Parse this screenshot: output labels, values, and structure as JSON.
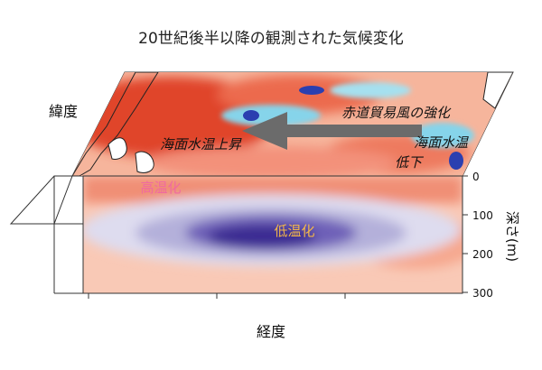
{
  "title": "20世紀後半以降の観測された気候変化",
  "labels": {
    "latitude": "緯度",
    "longitude": "経度",
    "depth_axis": "深さ(m)",
    "trade_wind": "赤道貿易風の強化",
    "sst_rise": "海面水温上昇",
    "sst_fall_line1": "海面水温",
    "sst_fall_line2": "低下",
    "warming": "高温化",
    "cooling": "低温化"
  },
  "depth_ticks": [
    "0",
    "100",
    "200",
    "300"
  ],
  "colors": {
    "warm_dark": "#d7301f",
    "warm_mid": "#f07a5c",
    "warm_light": "#fbc6b0",
    "cool_light": "#d8d8ec",
    "cool_mid": "#9088c8",
    "cool_dark": "#3b2a92",
    "surface_cool": "#7fd0e8",
    "arrow": "#6b6b6b",
    "warming_text": "#f06aa0",
    "cooling_text": "#f2b64a"
  }
}
